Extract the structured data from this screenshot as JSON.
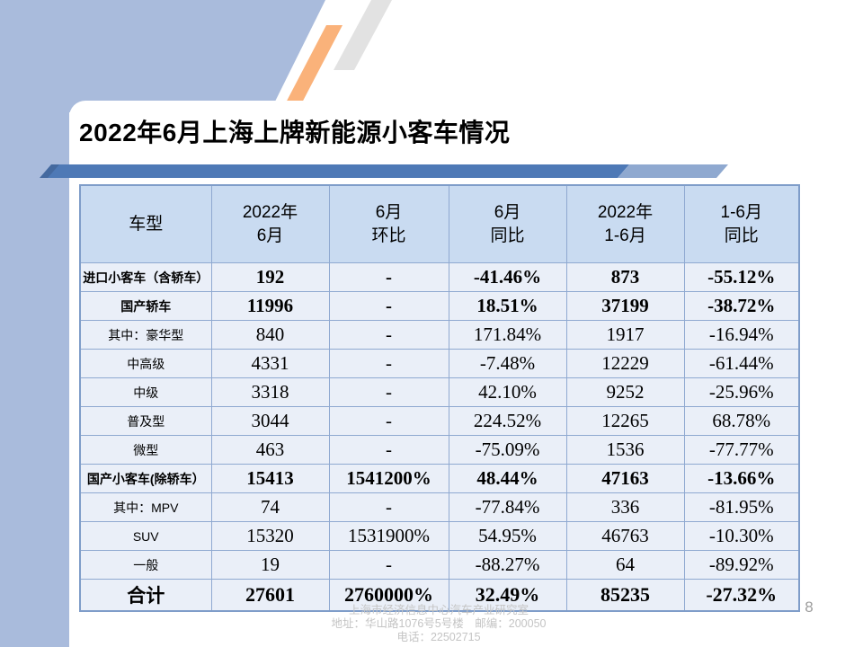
{
  "slide": {
    "title": "2022年6月上海上牌新能源小客车情况",
    "page_number": "8",
    "footer_lines": [
      "上海市经济信息中心汽车产业研究室",
      "地址：华山路1076号5号楼　邮编：200050",
      "电话：22502715"
    ]
  },
  "colors": {
    "accent_band": "#A9BBDC",
    "bar_dark": "#4E79B6",
    "bar_light": "#8FA9D0",
    "bar_cap": "#44699F",
    "stripe_orange": "#FAB27A",
    "stripe_gray": "#E2E2E2",
    "table_header_bg": "#C9DBF1",
    "table_row_bg": "#EAEFF8",
    "table_border": "#8FA9D1",
    "footer_text": "#C4C4C4",
    "page_number_text": "#9E9E9E"
  },
  "chart_data": {
    "type": "table",
    "headers": [
      [
        "车型",
        ""
      ],
      [
        "2022年",
        "6月"
      ],
      [
        "6月",
        "环比"
      ],
      [
        "6月",
        "同比"
      ],
      [
        "2022年",
        "1-6月"
      ],
      [
        "1-6月",
        "同比"
      ]
    ],
    "rows": [
      {
        "label": "进口小客车（含轿车）",
        "values": [
          "192",
          "-",
          "-41.46%",
          "873",
          "-55.12%"
        ],
        "bold": true,
        "total": false
      },
      {
        "label": "国产轿车",
        "values": [
          "11996",
          "-",
          "18.51%",
          "37199",
          "-38.72%"
        ],
        "bold": true,
        "total": false
      },
      {
        "label": "其中：豪华型",
        "values": [
          "840",
          "-",
          "171.84%",
          "1917",
          "-16.94%"
        ],
        "bold": false,
        "total": false
      },
      {
        "label": "中高级",
        "values": [
          "4331",
          "-",
          "-7.48%",
          "12229",
          "-61.44%"
        ],
        "bold": false,
        "total": false
      },
      {
        "label": "中级",
        "values": [
          "3318",
          "-",
          "42.10%",
          "9252",
          "-25.96%"
        ],
        "bold": false,
        "total": false
      },
      {
        "label": "普及型",
        "values": [
          "3044",
          "-",
          "224.52%",
          "12265",
          "68.78%"
        ],
        "bold": false,
        "total": false
      },
      {
        "label": "微型",
        "values": [
          "463",
          "-",
          "-75.09%",
          "1536",
          "-77.77%"
        ],
        "bold": false,
        "total": false
      },
      {
        "label": "国产小客车(除轿车）",
        "values": [
          "15413",
          "1541200%",
          "48.44%",
          "47163",
          "-13.66%"
        ],
        "bold": true,
        "total": false
      },
      {
        "label": "其中：MPV",
        "values": [
          "74",
          "-",
          "-77.84%",
          "336",
          "-81.95%"
        ],
        "bold": false,
        "total": false
      },
      {
        "label": "SUV",
        "values": [
          "15320",
          "1531900%",
          "54.95%",
          "46763",
          "-10.30%"
        ],
        "bold": false,
        "total": false
      },
      {
        "label": "一般",
        "values": [
          "19",
          "-",
          "-88.27%",
          "64",
          "-89.92%"
        ],
        "bold": false,
        "total": false
      },
      {
        "label": "合计",
        "values": [
          "27601",
          "2760000%",
          "32.49%",
          "85235",
          "-27.32%"
        ],
        "bold": true,
        "total": true
      }
    ]
  }
}
